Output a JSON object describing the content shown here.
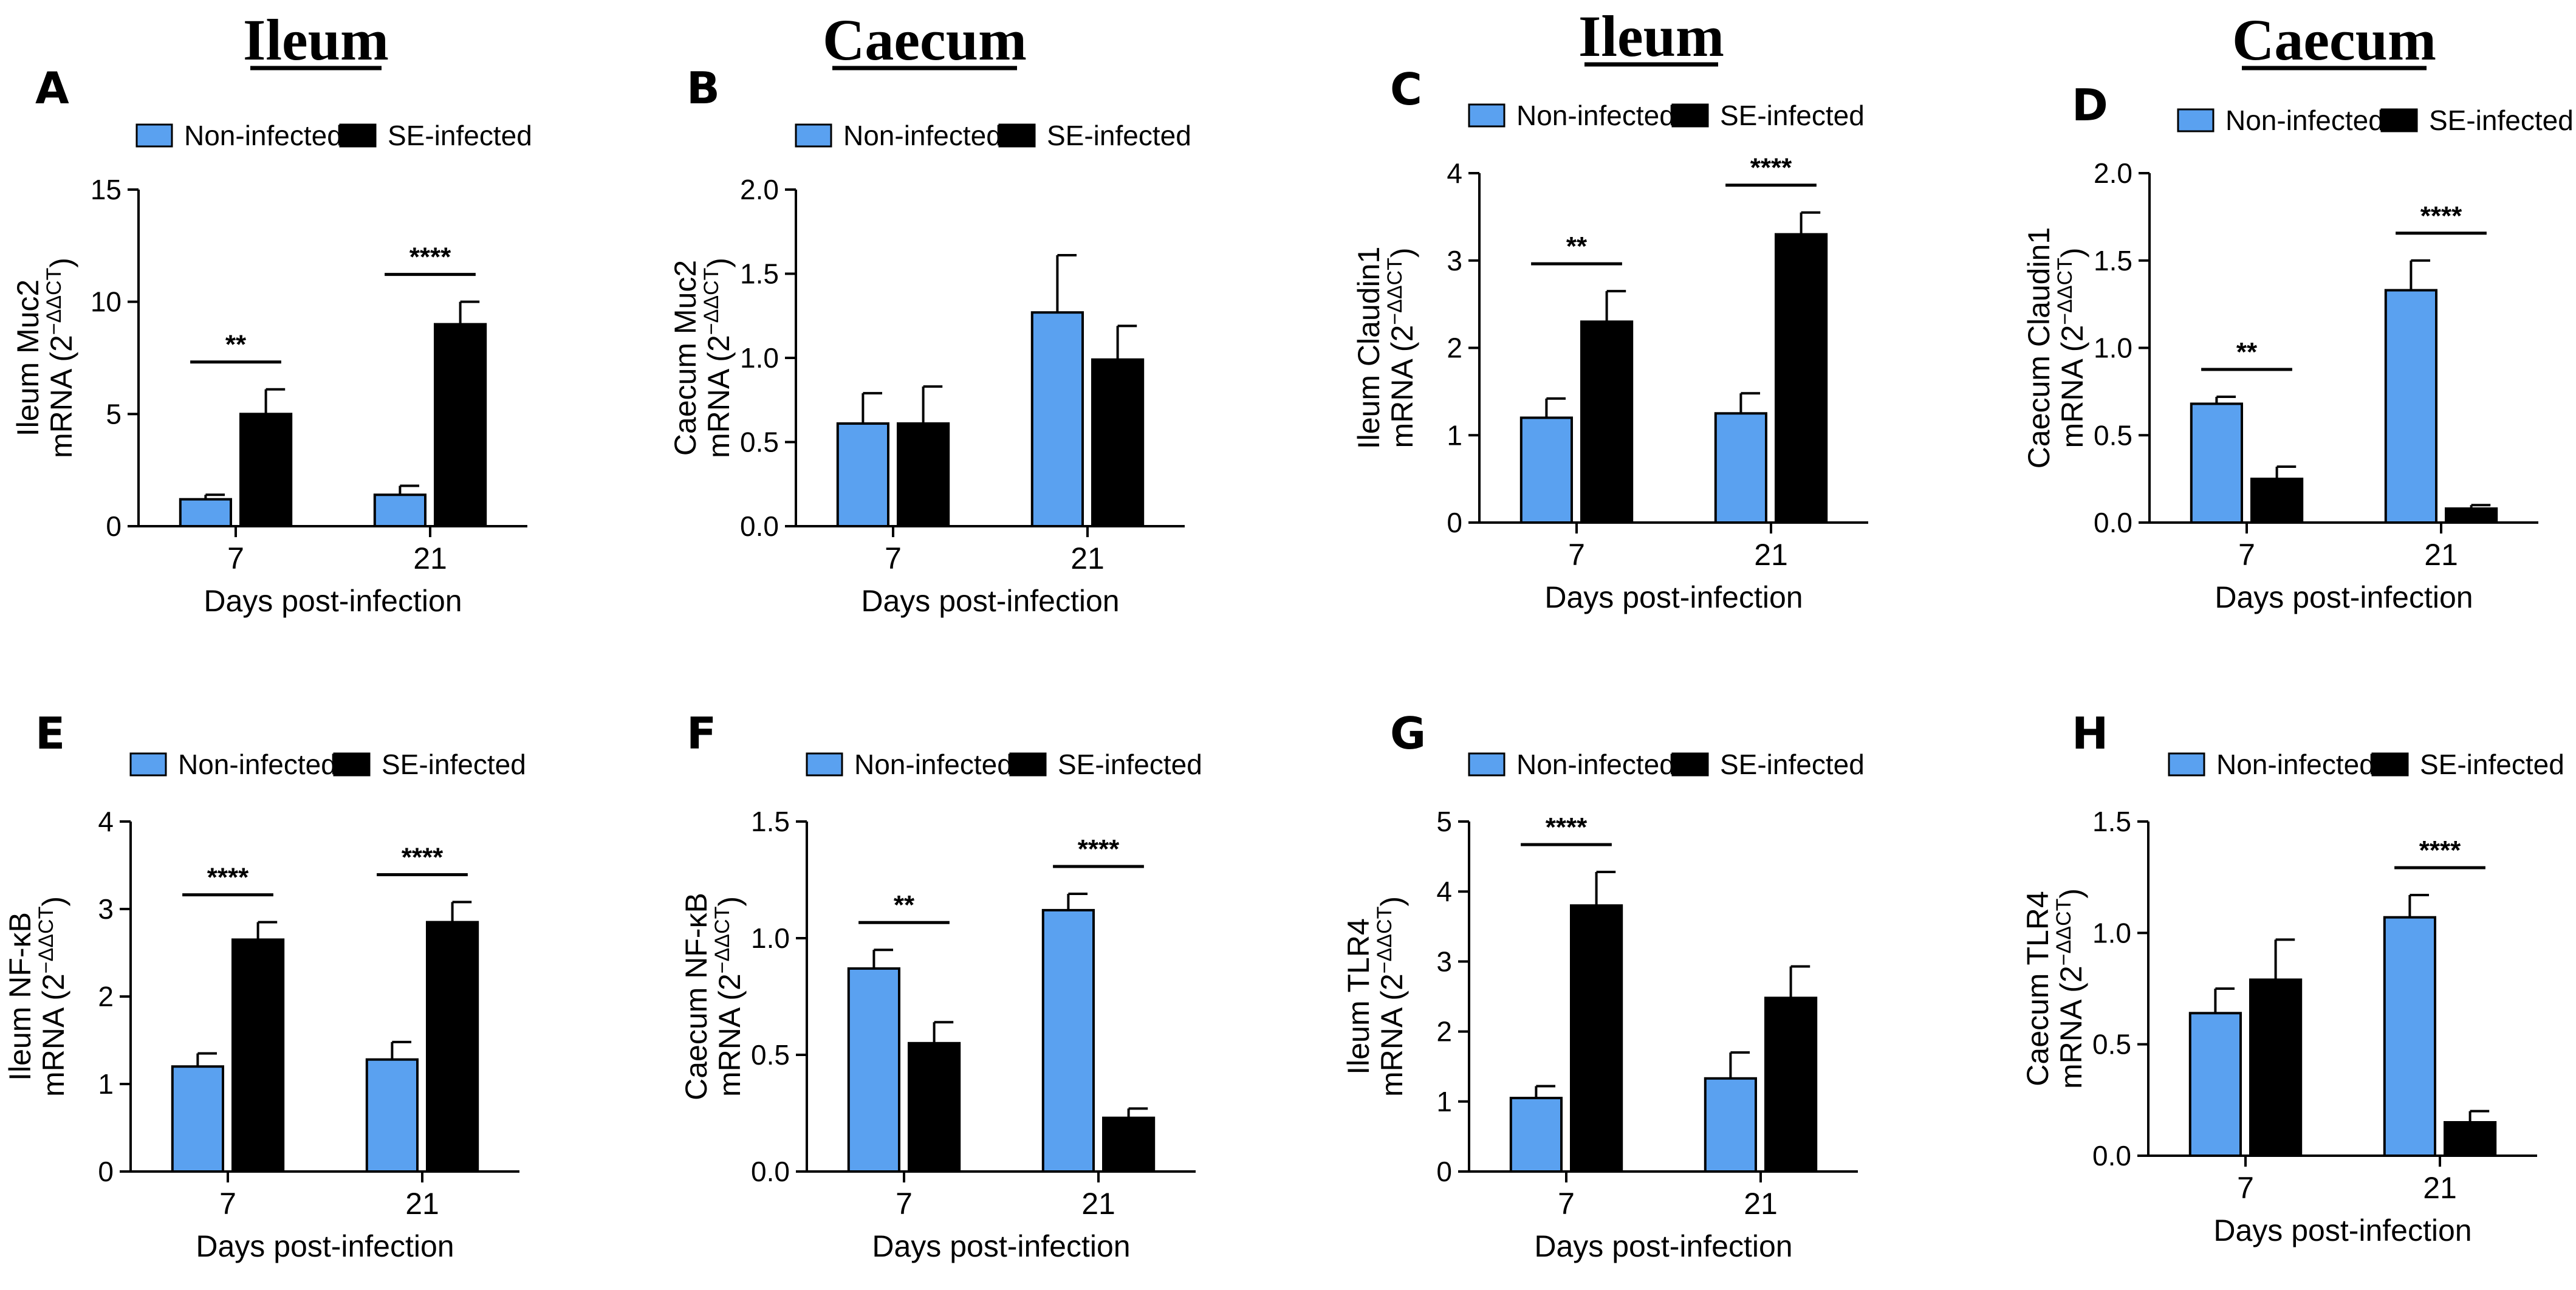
{
  "column_headers": [
    "Ileum",
    "Caecum",
    "Ileum",
    "Caecum"
  ],
  "colors": {
    "non_infected": "#5aa1f0",
    "se_infected": "#000000"
  },
  "chart_data": [
    {
      "panel": "A",
      "type": "bar",
      "legend": [
        "Non-infected",
        "SE-infected"
      ],
      "ylabel_line1": "Ileum Muc2",
      "ylabel_line2": "mRNA (2",
      "ylabel_sup": "−ΔΔCT",
      "ylabel_close": ")",
      "xlabel": "Days post-infection",
      "categories": [
        "7",
        "21"
      ],
      "ylim": [
        0,
        15
      ],
      "yticks": [
        "0",
        "5",
        "10",
        "15"
      ],
      "ytick_values": [
        0,
        5,
        10,
        15
      ],
      "series": [
        {
          "name": "Non-infected",
          "values": [
            1.2,
            1.4
          ],
          "errors": [
            0.2,
            0.4
          ]
        },
        {
          "name": "SE-infected",
          "values": [
            5.0,
            9.0
          ],
          "errors": [
            1.1,
            1.0
          ]
        }
      ],
      "significance": [
        {
          "category": 0,
          "label": "**"
        },
        {
          "category": 1,
          "label": "****"
        }
      ]
    },
    {
      "panel": "B",
      "type": "bar",
      "legend": [
        "Non-infected",
        "SE-infected"
      ],
      "ylabel_line1": "Caecum Muc2",
      "ylabel_line2": "mRNA (2",
      "ylabel_sup": "−ΔΔCT",
      "ylabel_close": ")",
      "xlabel": "Days post-infection",
      "categories": [
        "7",
        "21"
      ],
      "ylim": [
        0,
        2
      ],
      "yticks": [
        "0.0",
        "0.5",
        "1.0",
        "1.5",
        "2.0"
      ],
      "ytick_values": [
        0,
        0.5,
        1,
        1.5,
        2
      ],
      "series": [
        {
          "name": "Non-infected",
          "values": [
            0.61,
            1.27
          ],
          "errors": [
            0.18,
            0.34
          ]
        },
        {
          "name": "SE-infected",
          "values": [
            0.61,
            0.99
          ],
          "errors": [
            0.22,
            0.2
          ]
        }
      ],
      "significance": []
    },
    {
      "panel": "C",
      "type": "bar",
      "legend": [
        "Non-infected",
        "SE-infected"
      ],
      "ylabel_line1": "Ileum Claudin1",
      "ylabel_line2": "mRNA (2",
      "ylabel_sup": "−ΔΔCT",
      "ylabel_close": ")",
      "xlabel": "Days post-infection",
      "categories": [
        "7",
        "21"
      ],
      "ylim": [
        0,
        4
      ],
      "yticks": [
        "0",
        "1",
        "2",
        "3",
        "4"
      ],
      "ytick_values": [
        0,
        1,
        2,
        3,
        4
      ],
      "series": [
        {
          "name": "Non-infected",
          "values": [
            1.2,
            1.25
          ],
          "errors": [
            0.22,
            0.23
          ]
        },
        {
          "name": "SE-infected",
          "values": [
            2.3,
            3.3
          ],
          "errors": [
            0.35,
            0.25
          ]
        }
      ],
      "significance": [
        {
          "category": 0,
          "label": "**"
        },
        {
          "category": 1,
          "label": "****"
        }
      ]
    },
    {
      "panel": "D",
      "type": "bar",
      "legend": [
        "Non-infected",
        "SE-infected"
      ],
      "ylabel_line1": "Caecum Claudin1",
      "ylabel_line2": "mRNA (2",
      "ylabel_sup": "−ΔΔCT",
      "ylabel_close": ")",
      "xlabel": "Days post-infection",
      "categories": [
        "7",
        "21"
      ],
      "ylim": [
        0,
        2
      ],
      "yticks": [
        "0.0",
        "0.5",
        "1.0",
        "1.5",
        "2.0"
      ],
      "ytick_values": [
        0,
        0.5,
        1,
        1.5,
        2
      ],
      "series": [
        {
          "name": "Non-infected",
          "values": [
            0.68,
            1.33
          ],
          "errors": [
            0.04,
            0.17
          ]
        },
        {
          "name": "SE-infected",
          "values": [
            0.25,
            0.08
          ],
          "errors": [
            0.07,
            0.02
          ]
        }
      ],
      "significance": [
        {
          "category": 0,
          "label": "**"
        },
        {
          "category": 1,
          "label": "****"
        }
      ]
    },
    {
      "panel": "E",
      "type": "bar",
      "legend": [
        "Non-infected",
        "SE-infected"
      ],
      "ylabel_line1": "Ileum NF-κB",
      "ylabel_line2": "mRNA (2",
      "ylabel_sup": "−ΔΔCT",
      "ylabel_close": ")",
      "xlabel": "Days post-infection",
      "categories": [
        "7",
        "21"
      ],
      "ylim": [
        0,
        4
      ],
      "yticks": [
        "0",
        "1",
        "2",
        "3",
        "4"
      ],
      "ytick_values": [
        0,
        1,
        2,
        3,
        4
      ],
      "series": [
        {
          "name": "Non-infected",
          "values": [
            1.2,
            1.28
          ],
          "errors": [
            0.15,
            0.2
          ]
        },
        {
          "name": "SE-infected",
          "values": [
            2.65,
            2.85
          ],
          "errors": [
            0.2,
            0.23
          ]
        }
      ],
      "significance": [
        {
          "category": 0,
          "label": "****"
        },
        {
          "category": 1,
          "label": "****"
        }
      ]
    },
    {
      "panel": "F",
      "type": "bar",
      "legend": [
        "Non-infected",
        "SE-infected"
      ],
      "ylabel_line1": "Caecum NF-κB",
      "ylabel_line2": "mRNA (2",
      "ylabel_sup": "−ΔΔCT",
      "ylabel_close": ")",
      "xlabel": "Days post-infection",
      "categories": [
        "7",
        "21"
      ],
      "ylim": [
        0,
        1.5
      ],
      "yticks": [
        "0.0",
        "0.5",
        "1.0",
        "1.5"
      ],
      "ytick_values": [
        0,
        0.5,
        1,
        1.5
      ],
      "series": [
        {
          "name": "Non-infected",
          "values": [
            0.87,
            1.12
          ],
          "errors": [
            0.08,
            0.07
          ]
        },
        {
          "name": "SE-infected",
          "values": [
            0.55,
            0.23
          ],
          "errors": [
            0.09,
            0.04
          ]
        }
      ],
      "significance": [
        {
          "category": 0,
          "label": "**"
        },
        {
          "category": 1,
          "label": "****"
        }
      ]
    },
    {
      "panel": "G",
      "type": "bar",
      "legend": [
        "Non-infected",
        "SE-infected"
      ],
      "ylabel_line1": "Ileum TLR4",
      "ylabel_line2": "mRNA (2",
      "ylabel_sup": "−ΔΔCT",
      "ylabel_close": ")",
      "xlabel": "Days post-infection",
      "categories": [
        "7",
        "21"
      ],
      "ylim": [
        0,
        5
      ],
      "yticks": [
        "0",
        "1",
        "2",
        "3",
        "4",
        "5"
      ],
      "ytick_values": [
        0,
        1,
        2,
        3,
        4,
        5
      ],
      "series": [
        {
          "name": "Non-infected",
          "values": [
            1.05,
            1.33
          ],
          "errors": [
            0.17,
            0.37
          ]
        },
        {
          "name": "SE-infected",
          "values": [
            3.8,
            2.48
          ],
          "errors": [
            0.48,
            0.45
          ]
        }
      ],
      "significance": [
        {
          "category": 0,
          "label": "****"
        }
      ]
    },
    {
      "panel": "H",
      "type": "bar",
      "legend": [
        "Non-infected",
        "SE-infected"
      ],
      "ylabel_line1": "Caecum TLR4",
      "ylabel_line2": "mRNA (2",
      "ylabel_sup": "−ΔΔCT",
      "ylabel_close": ")",
      "xlabel": "Days post-infection",
      "categories": [
        "7",
        "21"
      ],
      "ylim": [
        0,
        1.5
      ],
      "yticks": [
        "0.0",
        "0.5",
        "1.0",
        "1.5"
      ],
      "ytick_values": [
        0,
        0.5,
        1,
        1.5
      ],
      "series": [
        {
          "name": "Non-infected",
          "values": [
            0.64,
            1.07
          ],
          "errors": [
            0.11,
            0.1
          ]
        },
        {
          "name": "SE-infected",
          "values": [
            0.79,
            0.15
          ],
          "errors": [
            0.18,
            0.05
          ]
        }
      ],
      "significance": [
        {
          "category": 1,
          "label": "****"
        }
      ]
    }
  ]
}
